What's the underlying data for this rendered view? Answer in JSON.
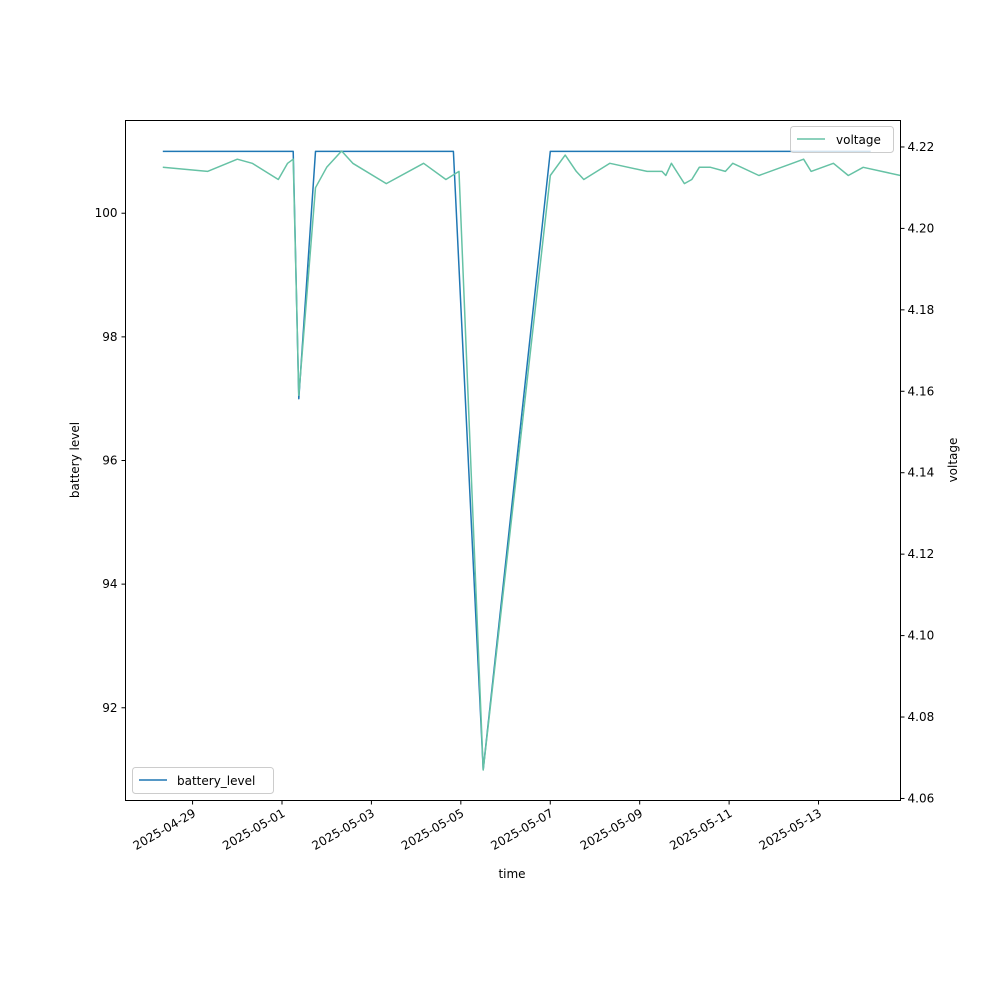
{
  "chart_data": {
    "type": "line",
    "xlabel": "time",
    "ylabel_left": "battery level",
    "ylabel_right": "voltage",
    "x_ticks": [
      "2025-04-29",
      "2025-05-01",
      "2025-05-03",
      "2025-05-05",
      "2025-05-07",
      "2025-05-09",
      "2025-05-11",
      "2025-05-13"
    ],
    "y_left_ticks": [
      "92",
      "94",
      "96",
      "98",
      "100"
    ],
    "y_right_ticks": [
      "4.06",
      "4.08",
      "4.10",
      "4.12",
      "4.14",
      "4.16",
      "4.18",
      "4.20",
      "4.22"
    ],
    "xlim": [
      "2025-04-27 12:00",
      "2025-05-14 20:00"
    ],
    "ylim_left": [
      90.5,
      101.5
    ],
    "ylim_right": [
      4.0595,
      4.2265
    ],
    "grid": false,
    "series": [
      {
        "name": "battery_level",
        "axis": "left",
        "color": "#1f77b4",
        "legend_position": "lower-left",
        "points": [
          [
            "2025-04-28 08:00",
            101
          ],
          [
            "2025-05-01 06:00",
            101
          ],
          [
            "2025-05-01 09:00",
            97
          ],
          [
            "2025-05-01 18:00",
            101
          ],
          [
            "2025-05-04 20:00",
            101
          ],
          [
            "2025-05-05 12:00",
            91
          ],
          [
            "2025-05-07 00:00",
            101
          ],
          [
            "2025-05-14 04:00",
            101
          ]
        ]
      },
      {
        "name": "voltage",
        "axis": "right",
        "color": "#66c2a5",
        "legend_position": "upper-right",
        "points": [
          [
            "2025-04-28 08:00",
            4.215
          ],
          [
            "2025-04-29 08:00",
            4.214
          ],
          [
            "2025-04-30 00:00",
            4.217
          ],
          [
            "2025-04-30 08:00",
            4.216
          ],
          [
            "2025-04-30 22:00",
            4.212
          ],
          [
            "2025-05-01 03:00",
            4.216
          ],
          [
            "2025-05-01 06:00",
            4.217
          ],
          [
            "2025-05-01 09:00",
            4.159
          ],
          [
            "2025-05-01 18:00",
            4.21
          ],
          [
            "2025-05-02 00:00",
            4.215
          ],
          [
            "2025-05-02 08:00",
            4.219
          ],
          [
            "2025-05-02 14:00",
            4.216
          ],
          [
            "2025-05-03 08:00",
            4.211
          ],
          [
            "2025-05-04 04:00",
            4.216
          ],
          [
            "2025-05-04 16:00",
            4.212
          ],
          [
            "2025-05-04 23:00",
            4.214
          ],
          [
            "2025-05-05 12:00",
            4.067
          ],
          [
            "2025-05-07 00:00",
            4.213
          ],
          [
            "2025-05-07 08:00",
            4.218
          ],
          [
            "2025-05-07 14:00",
            4.214
          ],
          [
            "2025-05-07 18:00",
            4.212
          ],
          [
            "2025-05-08 08:00",
            4.216
          ],
          [
            "2025-05-09 04:00",
            4.214
          ],
          [
            "2025-05-09 12:00",
            4.214
          ],
          [
            "2025-05-09 14:00",
            4.213
          ],
          [
            "2025-05-09 17:00",
            4.216
          ],
          [
            "2025-05-10 00:00",
            4.211
          ],
          [
            "2025-05-10 04:00",
            4.212
          ],
          [
            "2025-05-10 08:00",
            4.215
          ],
          [
            "2025-05-10 14:00",
            4.215
          ],
          [
            "2025-05-10 22:00",
            4.214
          ],
          [
            "2025-05-11 02:00",
            4.216
          ],
          [
            "2025-05-11 16:00",
            4.213
          ],
          [
            "2025-05-12 10:00",
            4.216
          ],
          [
            "2025-05-12 16:00",
            4.217
          ],
          [
            "2025-05-12 20:00",
            4.214
          ],
          [
            "2025-05-13 08:00",
            4.216
          ],
          [
            "2025-05-13 16:00",
            4.213
          ],
          [
            "2025-05-14 00:00",
            4.215
          ],
          [
            "2025-05-14 20:00",
            4.213
          ]
        ]
      }
    ]
  }
}
